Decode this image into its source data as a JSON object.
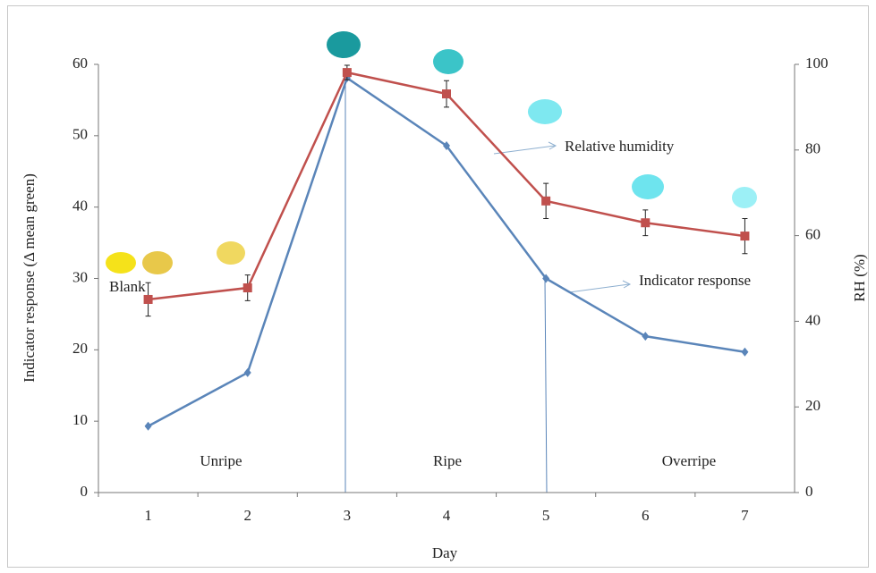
{
  "chart_data": {
    "type": "line",
    "x_label": "Day",
    "y_label": "Indicator response (Δ mean green)",
    "y2_label": "RH (%)",
    "categories": [
      "1",
      "2",
      "3",
      "4",
      "5",
      "6",
      "7"
    ],
    "ylim": [
      0,
      60
    ],
    "yticks": [
      0,
      10,
      20,
      30,
      40,
      50,
      60
    ],
    "y2lim": [
      0,
      100
    ],
    "y2ticks": [
      0,
      20,
      40,
      60,
      80,
      100
    ],
    "series": [
      {
        "name": "Indicator response",
        "color": "#5a85b9",
        "values": [
          9.3,
          16.8,
          58.1,
          48.6,
          30.0,
          21.9,
          19.7
        ]
      },
      {
        "name": "Relative humidity",
        "color": "#c0504d",
        "axis": "y2",
        "values": [
          45.1,
          47.8,
          98.1,
          93.1,
          68.1,
          63.0,
          59.9
        ],
        "errors": [
          3.9,
          3.0,
          1.7,
          3.1,
          4.1,
          3.0,
          4.1
        ]
      }
    ],
    "regions": [
      "Unripe",
      "Ripe",
      "Overripe"
    ],
    "blank_label": "Blank"
  }
}
